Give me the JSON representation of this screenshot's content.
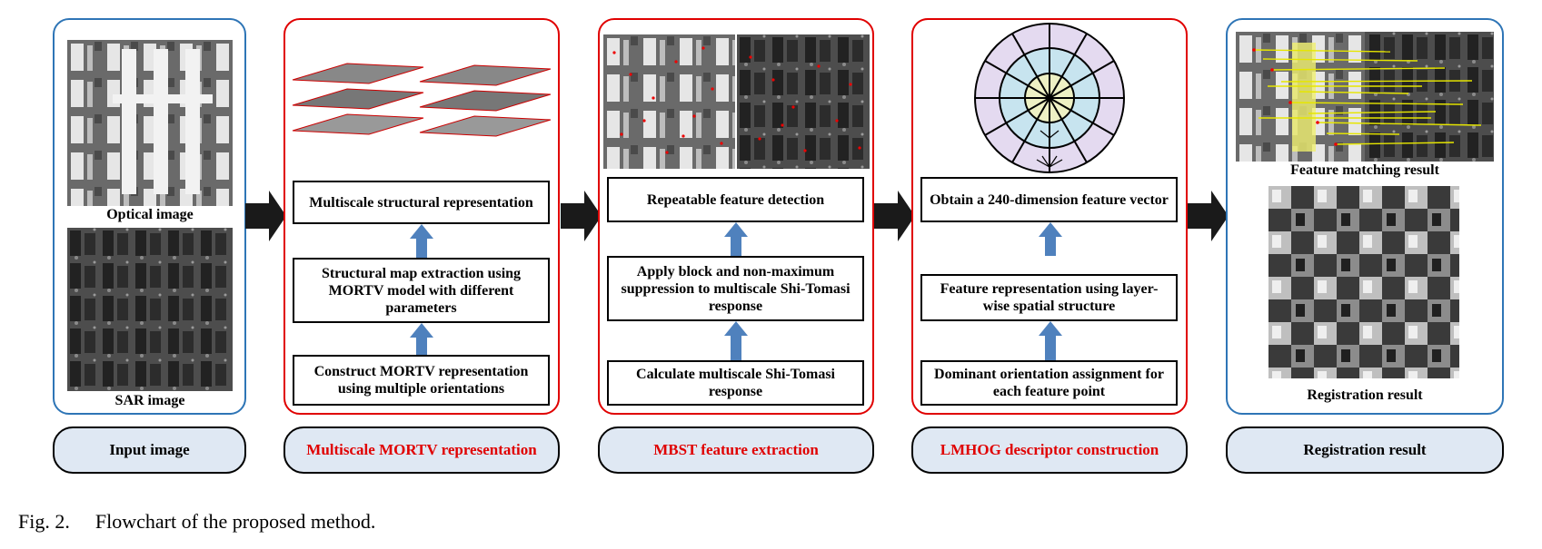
{
  "panels": {
    "input": {
      "optical_caption": "Optical image",
      "sar_caption": "SAR image",
      "label": "Input image"
    },
    "mortv": {
      "box_top": "Multiscale structural representation",
      "box_mid": "Structural map extraction using MORTV model with different parameters",
      "box_bottom": "Construct MORTV representation using multiple orientations",
      "label": "Multiscale MORTV representation"
    },
    "mbst": {
      "box_top": "Repeatable feature detection",
      "box_mid": "Apply block and non-maximum suppression to multiscale Shi-Tomasi response",
      "box_bottom": "Calculate multiscale Shi-Tomasi response",
      "label": "MBST feature extraction"
    },
    "lmhog": {
      "box_top": "Obtain a 240-dimension feature vector",
      "box_mid": "Feature representation using layer-wise spatial structure",
      "box_bottom": "Dominant orientation assignment for each feature point",
      "label": "LMHOG descriptor construction"
    },
    "result": {
      "matching_caption": "Feature matching result",
      "registration_caption": "Registration result",
      "label": "Registration result"
    }
  },
  "figure_caption": {
    "number": "Fig. 2.",
    "text": "Flowchart of the proposed method."
  },
  "colors": {
    "panel_blue": "#2e75b6",
    "panel_red": "#e00000",
    "pill_fill": "#dfe8f3",
    "arrow_blue": "#4f81bd",
    "arrow_dark": "#1a1a1a"
  }
}
